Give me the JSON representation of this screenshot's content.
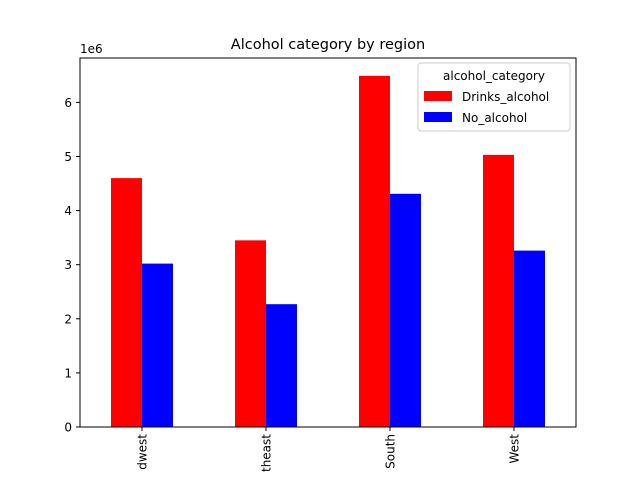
{
  "chart_data": {
    "type": "bar",
    "title": "Alcohol category by region",
    "xlabel": "",
    "ylabel": "",
    "scale_label": "1e6",
    "categories": [
      "Midwest",
      "Northeast",
      "South",
      "West"
    ],
    "category_labels_visible": [
      "dwest",
      "theast",
      "South",
      "West"
    ],
    "series": [
      {
        "name": "Drinks_alcohol",
        "color": "#ff0000",
        "values": [
          4.6,
          3.45,
          6.49,
          5.03
        ]
      },
      {
        "name": "No_alcohol",
        "color": "#0000ff",
        "values": [
          3.02,
          2.27,
          4.31,
          3.26
        ]
      }
    ],
    "yticks": [
      0,
      1,
      2,
      3,
      4,
      5,
      6
    ],
    "ylim": [
      0,
      6.82
    ],
    "legend": {
      "title": "alcohol_category",
      "placement": "top-right"
    },
    "grid": false
  }
}
